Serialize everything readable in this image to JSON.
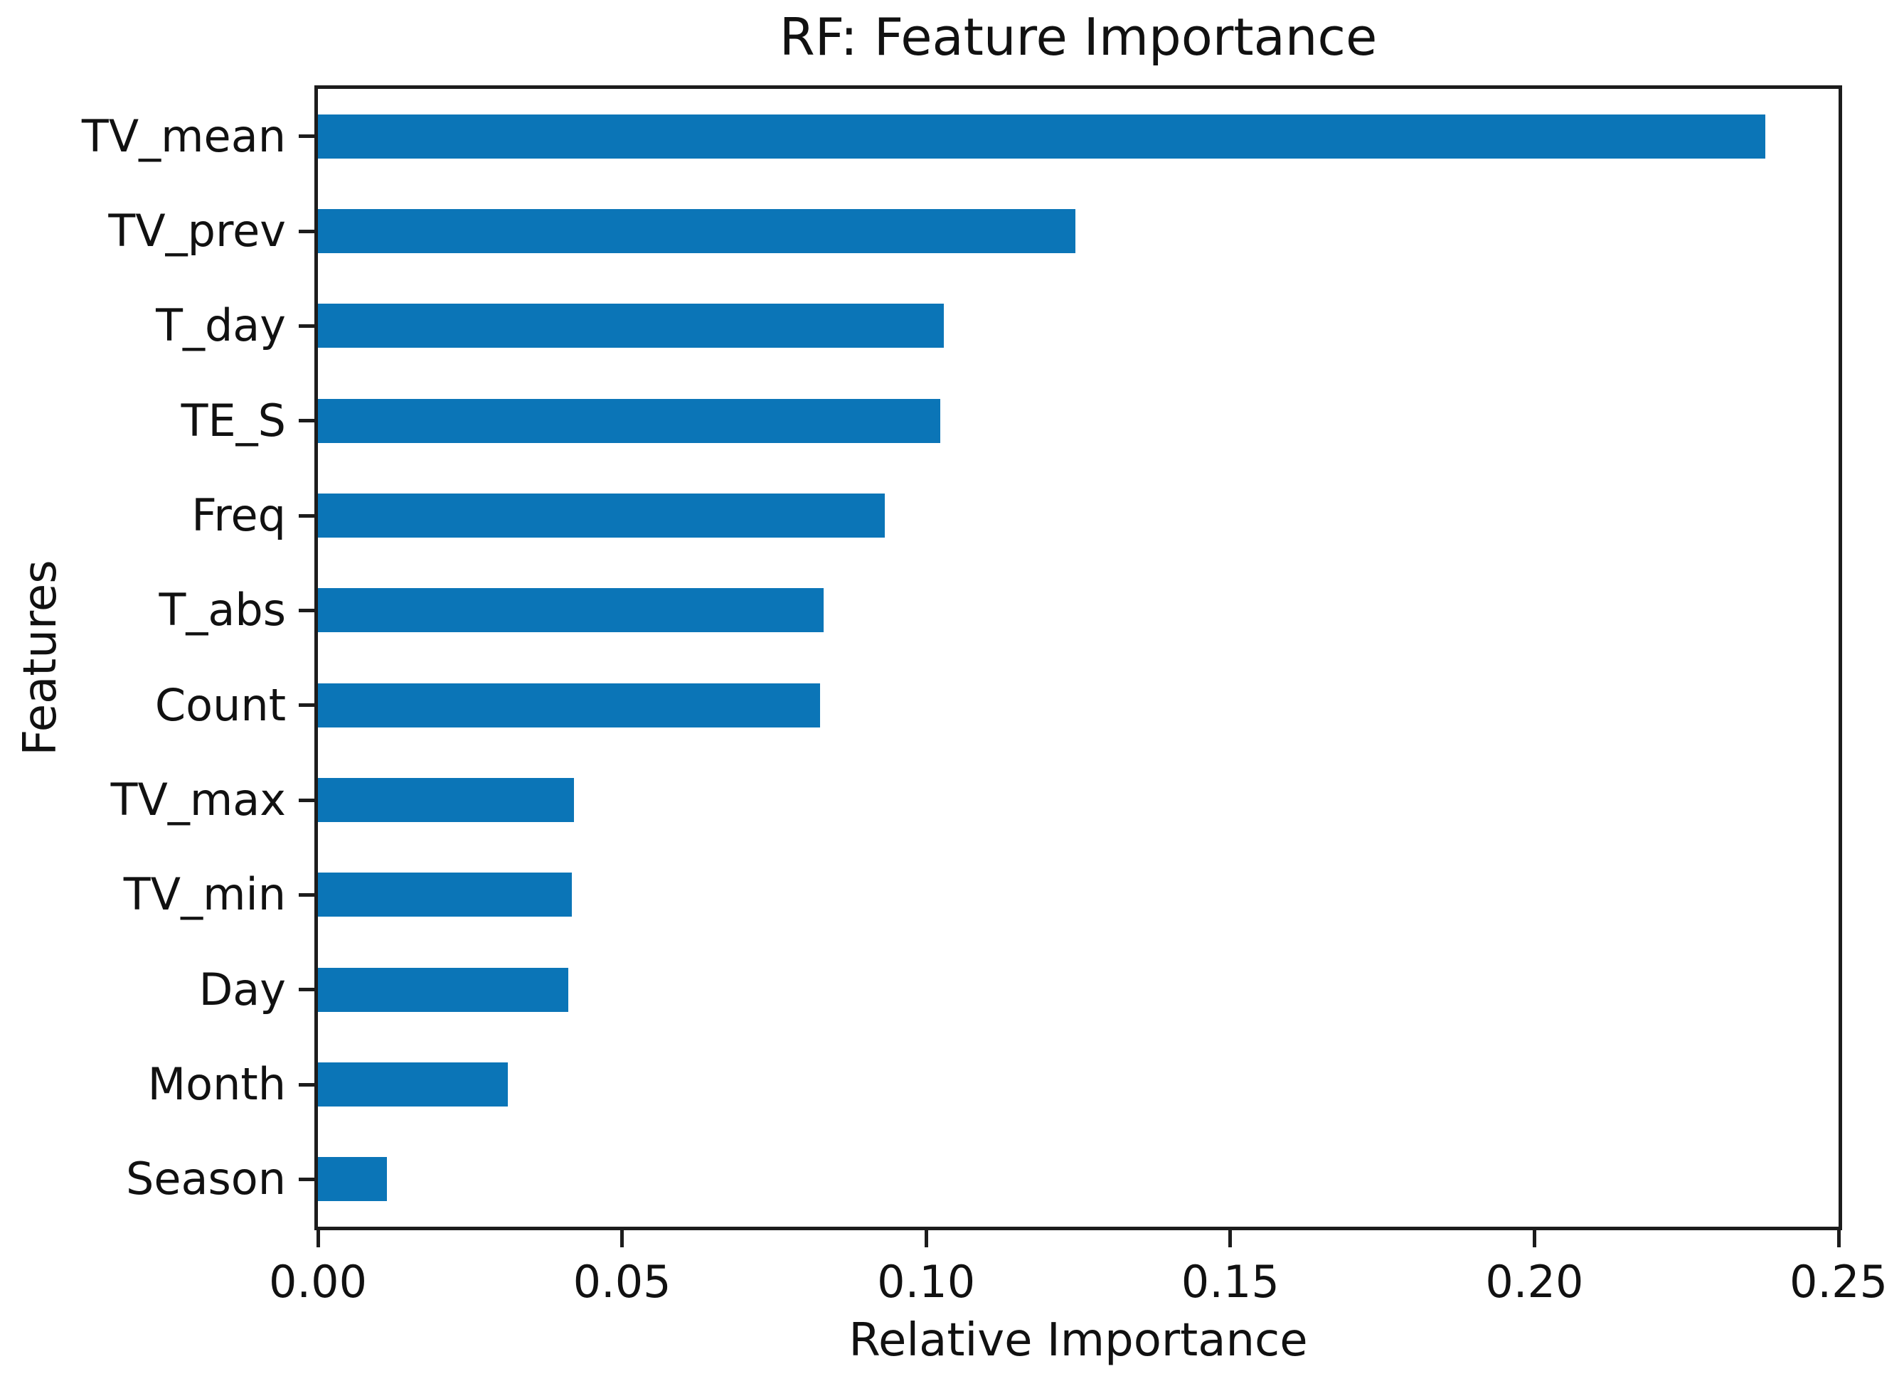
{
  "chart_data": {
    "type": "bar",
    "orientation": "horizontal",
    "title": "RF: Feature Importance",
    "xlabel": "Relative Importance",
    "ylabel": "Features",
    "categories": [
      "TV_mean",
      "TV_prev",
      "T_day",
      "TE_S",
      "Freq",
      "T_abs",
      "Count",
      "TV_max",
      "TV_min",
      "Day",
      "Month",
      "Season"
    ],
    "values": [
      0.238,
      0.1245,
      0.1029,
      0.1023,
      0.0932,
      0.0831,
      0.0825,
      0.0421,
      0.0417,
      0.0412,
      0.0312,
      0.0113
    ],
    "xlim": [
      0,
      0.25
    ],
    "xticks": [
      0,
      0.05,
      0.1,
      0.15,
      0.2,
      0.25
    ],
    "xtick_labels": [
      "0.00",
      "0.05",
      "0.10",
      "0.15",
      "0.20",
      "0.25"
    ],
    "grid": false,
    "legend": null,
    "bar_color": "#0b75b7",
    "axis_color": "#1c1c1c",
    "text_color": "#111111"
  }
}
